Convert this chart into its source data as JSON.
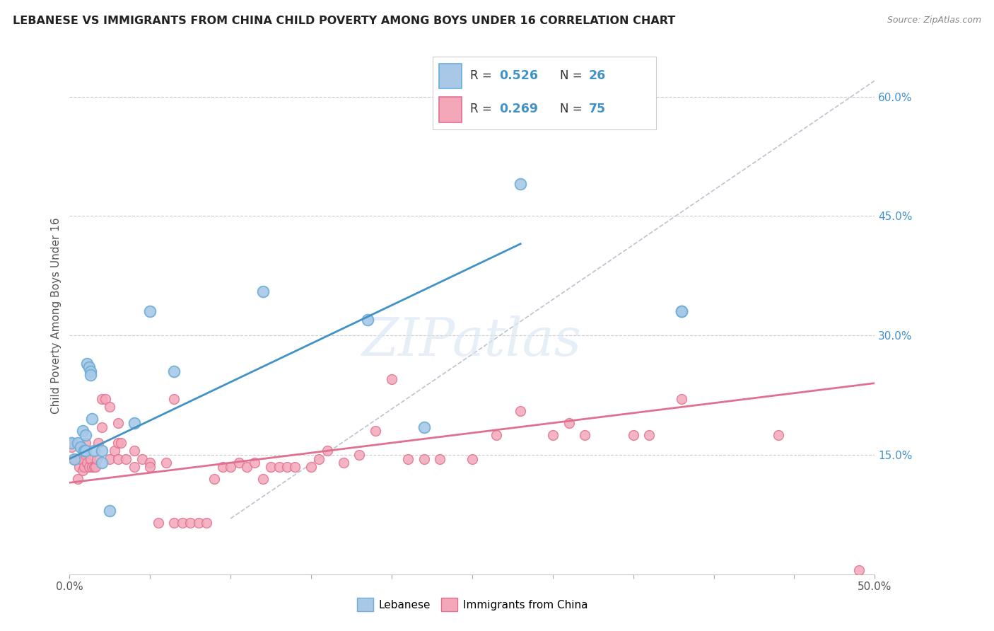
{
  "title": "LEBANESE VS IMMIGRANTS FROM CHINA CHILD POVERTY AMONG BOYS UNDER 16 CORRELATION CHART",
  "source": "Source: ZipAtlas.com",
  "ylabel": "Child Poverty Among Boys Under 16",
  "xlim": [
    0.0,
    0.5
  ],
  "ylim": [
    0.0,
    0.65
  ],
  "y_ticks_right": [
    0.0,
    0.15,
    0.3,
    0.45,
    0.6
  ],
  "y_tick_labels_right": [
    "",
    "15.0%",
    "30.0%",
    "45.0%",
    "60.0%"
  ],
  "blue_color": "#6baed6",
  "blue_scatter_color": "#a8c8e8",
  "blue_line_color": "#4292c6",
  "pink_scatter_color": "#f4a7b9",
  "pink_edge_color": "#e07090",
  "pink_line_color": "#e07090",
  "dashed_line_color": "#b0b8c8",
  "background_color": "#ffffff",
  "watermark": "ZIPatlas",
  "legend_label1": "Lebanese",
  "legend_label2": "Immigrants from China",
  "legend_text_color": "#4292c6",
  "blue_x": [
    0.001,
    0.003,
    0.005,
    0.007,
    0.008,
    0.009,
    0.01,
    0.01,
    0.011,
    0.012,
    0.013,
    0.013,
    0.014,
    0.015,
    0.02,
    0.02,
    0.025,
    0.04,
    0.05,
    0.065,
    0.12,
    0.185,
    0.22,
    0.28,
    0.38,
    0.38
  ],
  "blue_y": [
    0.165,
    0.145,
    0.165,
    0.16,
    0.18,
    0.155,
    0.155,
    0.175,
    0.265,
    0.26,
    0.255,
    0.25,
    0.195,
    0.155,
    0.155,
    0.14,
    0.08,
    0.19,
    0.33,
    0.255,
    0.355,
    0.32,
    0.185,
    0.49,
    0.33,
    0.33
  ],
  "pink_x": [
    0.001,
    0.002,
    0.003,
    0.004,
    0.005,
    0.006,
    0.007,
    0.008,
    0.009,
    0.01,
    0.01,
    0.011,
    0.012,
    0.013,
    0.014,
    0.015,
    0.016,
    0.017,
    0.018,
    0.02,
    0.02,
    0.022,
    0.025,
    0.025,
    0.028,
    0.03,
    0.03,
    0.03,
    0.032,
    0.035,
    0.04,
    0.04,
    0.045,
    0.05,
    0.05,
    0.055,
    0.06,
    0.065,
    0.065,
    0.07,
    0.075,
    0.08,
    0.085,
    0.09,
    0.095,
    0.1,
    0.105,
    0.11,
    0.115,
    0.12,
    0.125,
    0.13,
    0.135,
    0.14,
    0.15,
    0.155,
    0.16,
    0.17,
    0.18,
    0.19,
    0.2,
    0.21,
    0.22,
    0.23,
    0.25,
    0.265,
    0.28,
    0.3,
    0.31,
    0.32,
    0.35,
    0.36,
    0.38,
    0.44,
    0.49
  ],
  "pink_y": [
    0.16,
    0.165,
    0.145,
    0.145,
    0.12,
    0.135,
    0.145,
    0.13,
    0.135,
    0.15,
    0.165,
    0.14,
    0.135,
    0.145,
    0.135,
    0.135,
    0.135,
    0.145,
    0.165,
    0.185,
    0.22,
    0.22,
    0.21,
    0.145,
    0.155,
    0.19,
    0.145,
    0.165,
    0.165,
    0.145,
    0.135,
    0.155,
    0.145,
    0.14,
    0.135,
    0.065,
    0.14,
    0.22,
    0.065,
    0.065,
    0.065,
    0.065,
    0.065,
    0.12,
    0.135,
    0.135,
    0.14,
    0.135,
    0.14,
    0.12,
    0.135,
    0.135,
    0.135,
    0.135,
    0.135,
    0.145,
    0.155,
    0.14,
    0.15,
    0.18,
    0.245,
    0.145,
    0.145,
    0.145,
    0.145,
    0.175,
    0.205,
    0.175,
    0.19,
    0.175,
    0.175,
    0.175,
    0.22,
    0.175,
    0.005
  ],
  "blue_line_x0": 0.0,
  "blue_line_y0": 0.145,
  "blue_line_x1": 0.28,
  "blue_line_y1": 0.415,
  "pink_line_x0": 0.0,
  "pink_line_y0": 0.115,
  "pink_line_x1": 0.5,
  "pink_line_y1": 0.24
}
